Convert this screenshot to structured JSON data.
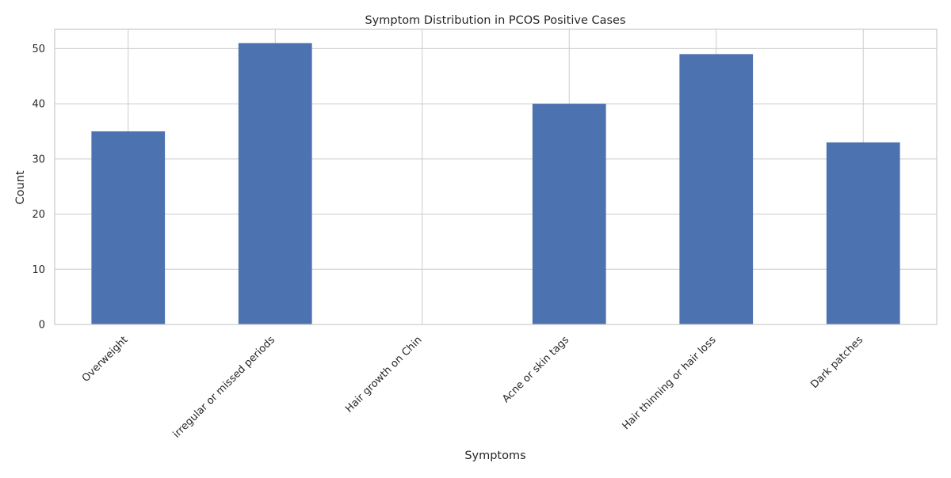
{
  "chart_data": {
    "type": "bar",
    "title": "Symptom Distribution in PCOS Positive Cases",
    "xlabel": "Symptoms",
    "ylabel": "Count",
    "categories": [
      "Overweight",
      "irregular or missed periods",
      "Hair growth on Chin",
      "Acne or skin tags",
      "Hair thinning or hair loss",
      "Dark patches"
    ],
    "values": [
      35,
      51,
      0,
      40,
      49,
      33
    ],
    "ylim": [
      0,
      53.5
    ],
    "yticks": [
      0,
      10,
      20,
      30,
      40,
      50
    ],
    "grid": true,
    "bar_color": "#4c72b0",
    "grid_color": "#cccccc"
  }
}
